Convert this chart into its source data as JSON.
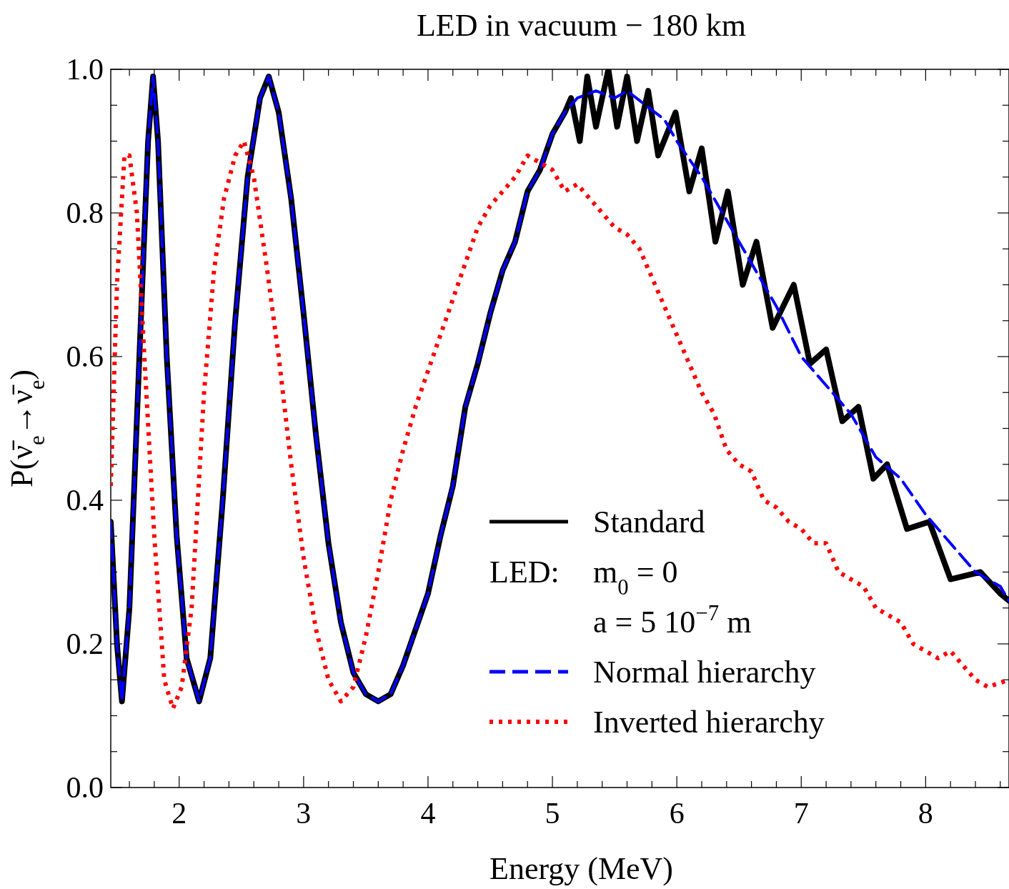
{
  "chart_data": {
    "type": "line",
    "title": "LED in vacuum − 180 km",
    "xlabel": "Energy (MeV)",
    "ylabel": "P(ν̄$_{e}$→ν̄$_{e}$)",
    "xlim": [
      1.45,
      8.67
    ],
    "ylim": [
      0,
      1
    ],
    "xticks": [
      {
        "value": 1.6,
        "label": null
      },
      {
        "value": 1.8,
        "label": null
      },
      2,
      {
        "value": 2.2,
        "label": null
      },
      {
        "value": 2.4,
        "label": null
      },
      {
        "value": 2.6,
        "label": null
      },
      {
        "value": 2.8,
        "label": null
      },
      3,
      {
        "value": 3.2,
        "label": null
      },
      {
        "value": 3.4,
        "label": null
      },
      {
        "value": 3.6,
        "label": null
      },
      {
        "value": 3.8,
        "label": null
      },
      4,
      {
        "value": 4.2,
        "label": null
      },
      {
        "value": 4.4,
        "label": null
      },
      {
        "value": 4.6,
        "label": null
      },
      {
        "value": 4.8,
        "label": null
      },
      5,
      {
        "value": 5.2,
        "label": null
      },
      {
        "value": 5.4,
        "label": null
      },
      {
        "value": 5.6,
        "label": null
      },
      {
        "value": 5.8,
        "label": null
      },
      6,
      {
        "value": 6.2,
        "label": null
      },
      {
        "value": 6.4,
        "label": null
      },
      {
        "value": 6.6,
        "label": null
      },
      {
        "value": 6.8,
        "label": null
      },
      7,
      {
        "value": 7.2,
        "label": null
      },
      {
        "value": 7.4,
        "label": null
      },
      {
        "value": 7.6,
        "label": null
      },
      {
        "value": 7.8,
        "label": null
      },
      8,
      {
        "value": 8.2,
        "label": null
      },
      {
        "value": 8.4,
        "label": null
      },
      {
        "value": 8.6,
        "label": null
      }
    ],
    "yticks": [
      {
        "value": 0,
        "label": "0.0"
      },
      {
        "value": 0.05,
        "label": null
      },
      {
        "value": 0.1,
        "label": null
      },
      {
        "value": 0.15,
        "label": null
      },
      0.2,
      {
        "value": 0.25,
        "label": null
      },
      {
        "value": 0.3,
        "label": null
      },
      {
        "value": 0.35,
        "label": null
      },
      0.4,
      {
        "value": 0.45,
        "label": null
      },
      {
        "value": 0.5,
        "label": null
      },
      {
        "value": 0.55,
        "label": null
      },
      0.6,
      {
        "value": 0.65,
        "label": null
      },
      {
        "value": 0.7,
        "label": null
      },
      {
        "value": 0.75,
        "label": null
      },
      0.8,
      {
        "value": 0.85,
        "label": null
      },
      {
        "value": 0.9,
        "label": null
      },
      {
        "value": 0.95,
        "label": null
      },
      {
        "value": 1,
        "label": "1.0"
      }
    ],
    "grid": false,
    "legend": "bottom right",
    "annotations": [
      "LED:",
      "m$_{0}$ = 0",
      "a   = 5 10$^{−7}$ m"
    ],
    "series": [
      {
        "name": "Standard",
        "color": "#000000",
        "line_style": "solid",
        "x": [
          1.45,
          1.5,
          1.54,
          1.6,
          1.68,
          1.75,
          1.79,
          1.83,
          1.9,
          1.98,
          2.06,
          2.16,
          2.25,
          2.35,
          2.45,
          2.55,
          2.65,
          2.72,
          2.8,
          2.9,
          3.0,
          3.1,
          3.2,
          3.3,
          3.4,
          3.5,
          3.6,
          3.7,
          3.8,
          3.9,
          4.0,
          4.1,
          4.2,
          4.3,
          4.4,
          4.5,
          4.6,
          4.7,
          4.8,
          4.9,
          5.0,
          5.1,
          5.15,
          5.22,
          5.28,
          5.35,
          5.45,
          5.52,
          5.6,
          5.68,
          5.77,
          5.85,
          5.99,
          6.1,
          6.2,
          6.31,
          6.41,
          6.53,
          6.64,
          6.77,
          6.94,
          7.07,
          7.2,
          7.33,
          7.46,
          7.58,
          7.69,
          7.85,
          8.03,
          8.2,
          8.44,
          8.6,
          8.67
        ],
        "values": [
          0.37,
          0.2,
          0.12,
          0.25,
          0.6,
          0.9,
          0.99,
          0.9,
          0.6,
          0.35,
          0.18,
          0.12,
          0.18,
          0.4,
          0.65,
          0.85,
          0.96,
          0.99,
          0.94,
          0.82,
          0.66,
          0.49,
          0.34,
          0.23,
          0.16,
          0.13,
          0.12,
          0.13,
          0.17,
          0.22,
          0.27,
          0.35,
          0.42,
          0.53,
          0.59,
          0.66,
          0.72,
          0.76,
          0.83,
          0.86,
          0.91,
          0.94,
          0.96,
          0.9,
          0.99,
          0.92,
          1.0,
          0.92,
          0.99,
          0.9,
          0.97,
          0.88,
          0.94,
          0.83,
          0.89,
          0.76,
          0.83,
          0.7,
          0.76,
          0.64,
          0.7,
          0.59,
          0.61,
          0.51,
          0.53,
          0.43,
          0.45,
          0.36,
          0.37,
          0.29,
          0.3,
          0.27,
          0.26
        ]
      },
      {
        "name": "Normal hierarchy",
        "color": "#0000ff",
        "line_style": "dashed",
        "x": [
          1.45,
          1.5,
          1.54,
          1.6,
          1.68,
          1.75,
          1.79,
          1.83,
          1.9,
          1.98,
          2.06,
          2.16,
          2.25,
          2.35,
          2.45,
          2.55,
          2.65,
          2.72,
          2.8,
          2.9,
          3.0,
          3.1,
          3.2,
          3.3,
          3.4,
          3.5,
          3.6,
          3.7,
          3.8,
          3.9,
          4.0,
          4.1,
          4.2,
          4.3,
          4.4,
          4.5,
          4.6,
          4.7,
          4.8,
          4.9,
          5.0,
          5.1,
          5.2,
          5.35,
          5.5,
          5.6,
          5.75,
          5.9,
          6.0,
          6.2,
          6.4,
          6.6,
          6.8,
          7.0,
          7.2,
          7.4,
          7.6,
          7.8,
          8.0,
          8.2,
          8.4,
          8.6,
          8.67
        ],
        "values": [
          0.37,
          0.2,
          0.12,
          0.25,
          0.6,
          0.9,
          0.99,
          0.9,
          0.6,
          0.35,
          0.18,
          0.12,
          0.18,
          0.4,
          0.65,
          0.85,
          0.96,
          0.99,
          0.94,
          0.82,
          0.66,
          0.49,
          0.34,
          0.23,
          0.16,
          0.13,
          0.12,
          0.13,
          0.17,
          0.22,
          0.27,
          0.35,
          0.42,
          0.53,
          0.59,
          0.66,
          0.72,
          0.76,
          0.83,
          0.86,
          0.91,
          0.94,
          0.96,
          0.97,
          0.96,
          0.97,
          0.95,
          0.93,
          0.9,
          0.85,
          0.79,
          0.73,
          0.67,
          0.6,
          0.56,
          0.52,
          0.46,
          0.43,
          0.38,
          0.34,
          0.3,
          0.28,
          0.26
        ]
      },
      {
        "name": "Inverted hierarchy",
        "color": "#ff0000",
        "line_style": "dotted",
        "x": [
          1.45,
          1.5,
          1.56,
          1.6,
          1.66,
          1.72,
          1.8,
          1.88,
          1.95,
          2.02,
          2.1,
          2.2,
          2.28,
          2.36,
          2.45,
          2.52,
          2.6,
          2.7,
          2.8,
          2.9,
          3.0,
          3.1,
          3.2,
          3.3,
          3.4,
          3.5,
          3.6,
          3.7,
          3.8,
          3.9,
          4.0,
          4.1,
          4.2,
          4.3,
          4.4,
          4.5,
          4.6,
          4.7,
          4.8,
          4.9,
          5.0,
          5.1,
          5.2,
          5.3,
          5.4,
          5.5,
          5.6,
          5.7,
          5.8,
          5.9,
          6.0,
          6.1,
          6.2,
          6.3,
          6.4,
          6.5,
          6.6,
          6.7,
          6.8,
          6.9,
          7.0,
          7.1,
          7.2,
          7.3,
          7.4,
          7.5,
          7.6,
          7.7,
          7.8,
          7.9,
          8.0,
          8.1,
          8.2,
          8.3,
          8.4,
          8.5,
          8.67
        ],
        "values": [
          0.42,
          0.7,
          0.88,
          0.88,
          0.8,
          0.6,
          0.35,
          0.15,
          0.11,
          0.14,
          0.25,
          0.55,
          0.72,
          0.82,
          0.88,
          0.9,
          0.85,
          0.73,
          0.6,
          0.45,
          0.32,
          0.22,
          0.15,
          0.12,
          0.14,
          0.21,
          0.3,
          0.4,
          0.47,
          0.53,
          0.58,
          0.63,
          0.68,
          0.73,
          0.78,
          0.81,
          0.83,
          0.85,
          0.88,
          0.87,
          0.86,
          0.83,
          0.84,
          0.82,
          0.8,
          0.78,
          0.77,
          0.75,
          0.71,
          0.67,
          0.63,
          0.59,
          0.55,
          0.52,
          0.47,
          0.45,
          0.44,
          0.4,
          0.39,
          0.37,
          0.36,
          0.34,
          0.34,
          0.3,
          0.29,
          0.28,
          0.25,
          0.24,
          0.23,
          0.2,
          0.19,
          0.18,
          0.19,
          0.17,
          0.15,
          0.14,
          0.15
        ]
      }
    ]
  }
}
